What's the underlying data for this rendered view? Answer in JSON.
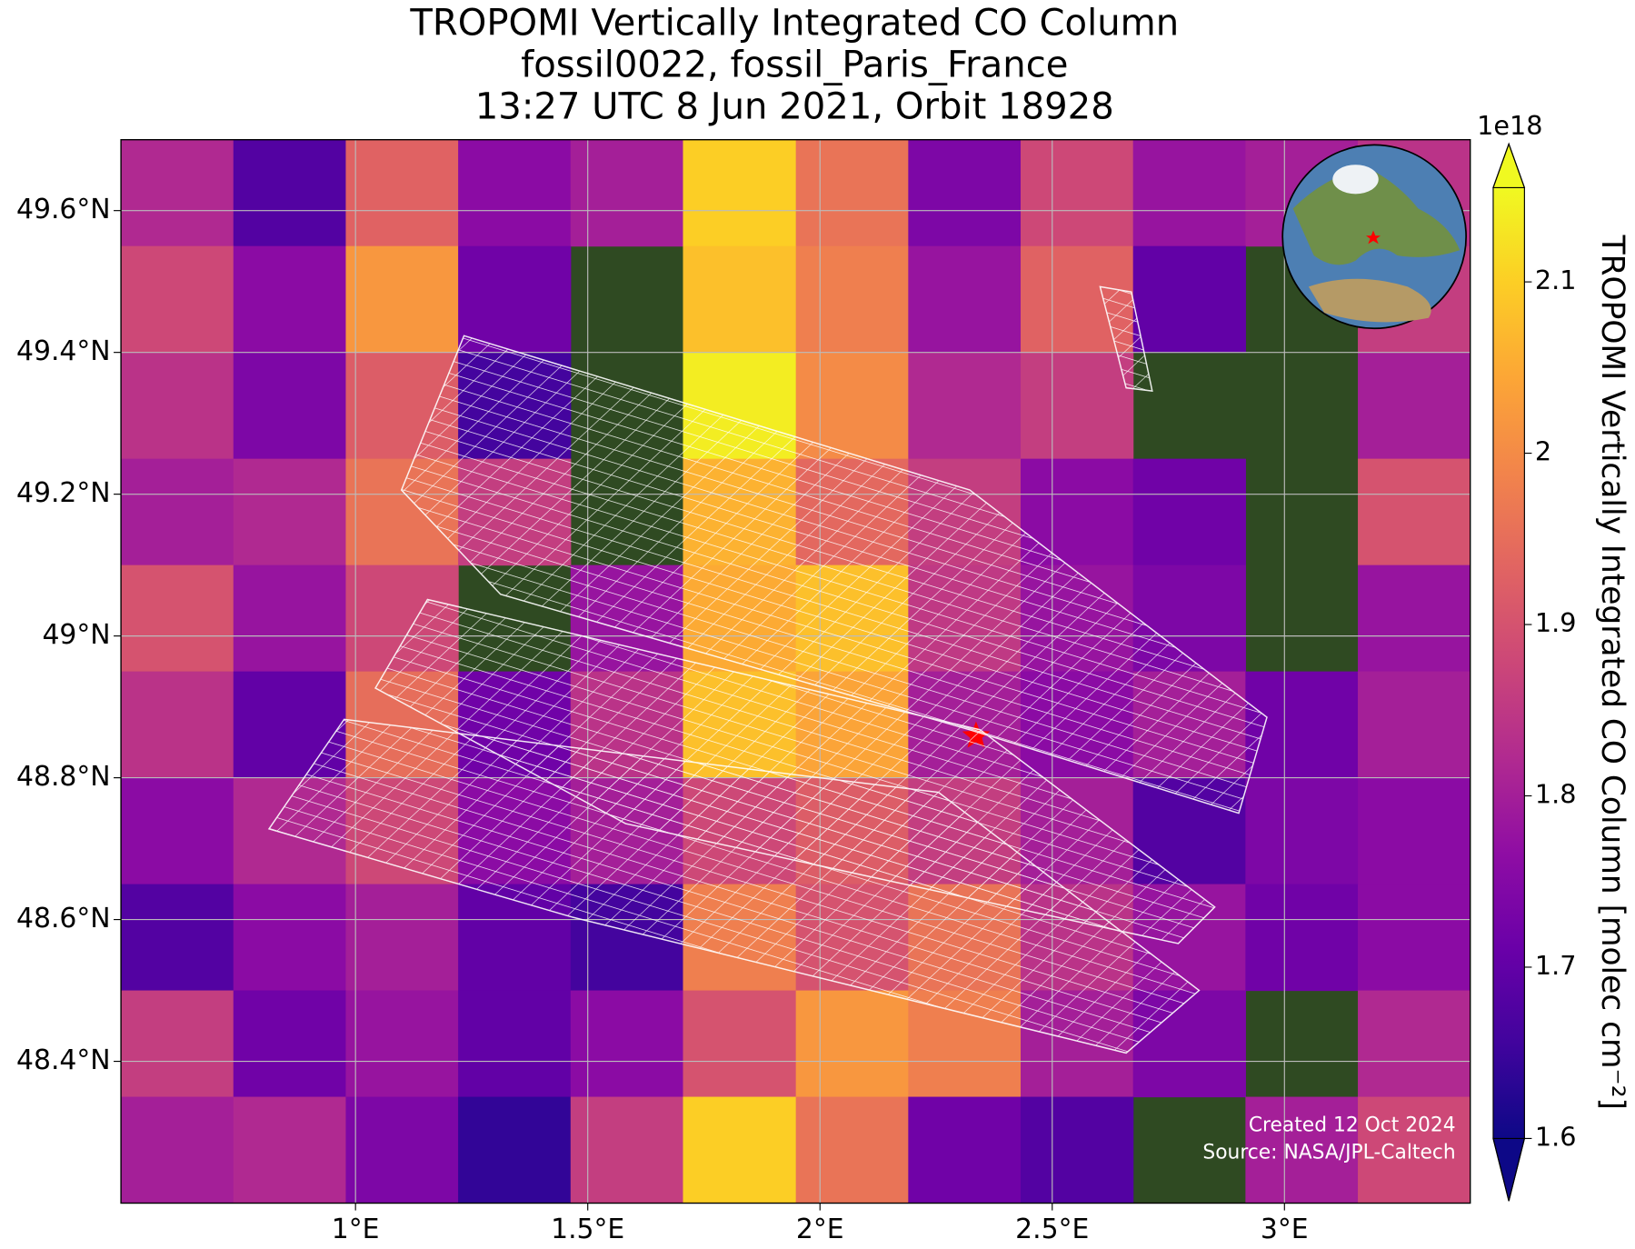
{
  "chart_data": {
    "type": "heatmap",
    "title": [
      "TROPOMI Vertically Integrated CO Column",
      "fossil0022, fossil_Paris_France",
      "13:27 UTC 8 Jun 2021, Orbit 18928"
    ],
    "colorbar_label": "TROPOMI Vertically Integrated CO Column [molec cm⁻²]",
    "colorbar_offset": "1e18",
    "clim": [
      1.6,
      2.155
    ],
    "cticks": [
      1.6,
      1.7,
      1.8,
      1.9,
      2.0,
      2.1
    ],
    "colormap": "plasma",
    "xlim": [
      0.495,
      3.4
    ],
    "ylim": [
      48.2,
      49.7
    ],
    "xticks": [
      {
        "value": 1,
        "label": "1°E"
      },
      {
        "value": 1.5,
        "label": "1.5°E"
      },
      {
        "value": 2,
        "label": "2°E"
      },
      {
        "value": 2.5,
        "label": "2.5°E"
      },
      {
        "value": 3,
        "label": "3°E"
      }
    ],
    "yticks": [
      {
        "value": 48.4,
        "label": "48.4°N"
      },
      {
        "value": 48.6,
        "label": "48.6°N"
      },
      {
        "value": 48.8,
        "label": "48.8°N"
      },
      {
        "value": 49,
        "label": "49°N"
      },
      {
        "value": 49.2,
        "label": "49.2°N"
      },
      {
        "value": 49.4,
        "label": "49.4°N"
      },
      {
        "value": 49.6,
        "label": "49.6°N"
      }
    ],
    "grid": true,
    "x_edges": [
      0.495,
      0.737,
      0.979,
      1.221,
      1.463,
      1.705,
      1.948,
      2.19,
      2.432,
      2.674,
      2.916,
      3.158,
      3.4
    ],
    "y_edges": [
      49.7,
      49.55,
      49.4,
      49.25,
      49.1,
      48.95,
      48.8,
      48.65,
      48.5,
      48.35,
      48.2
    ],
    "values": [
      [
        1.82,
        1.68,
        1.93,
        1.76,
        1.8,
        2.1,
        1.96,
        1.74,
        1.88,
        1.78,
        1.8,
        1.84
      ],
      [
        1.88,
        1.76,
        2.02,
        1.72,
        null,
        2.08,
        1.98,
        1.78,
        1.93,
        1.7,
        null,
        1.86
      ],
      [
        1.84,
        1.74,
        1.92,
        1.66,
        null,
        2.14,
        2.0,
        1.82,
        1.86,
        null,
        null,
        1.8
      ],
      [
        1.8,
        1.82,
        1.96,
        1.86,
        null,
        2.06,
        1.94,
        1.86,
        1.76,
        1.72,
        null,
        1.9
      ],
      [
        1.9,
        1.78,
        1.88,
        null,
        1.78,
        2.05,
        2.08,
        1.85,
        1.78,
        1.74,
        null,
        1.78
      ],
      [
        1.84,
        1.7,
        1.95,
        1.72,
        1.84,
        2.08,
        2.04,
        1.8,
        1.76,
        1.8,
        1.72,
        1.8
      ],
      [
        1.76,
        1.82,
        1.88,
        1.76,
        1.8,
        1.88,
        1.92,
        1.86,
        1.8,
        1.68,
        1.74,
        1.76
      ],
      [
        1.68,
        1.76,
        1.8,
        1.7,
        1.66,
        1.98,
        1.9,
        1.96,
        1.84,
        1.78,
        1.72,
        1.76
      ],
      [
        1.86,
        1.72,
        1.78,
        1.7,
        1.76,
        1.9,
        2.02,
        1.98,
        1.8,
        1.74,
        null,
        1.82
      ],
      [
        1.8,
        1.82,
        1.74,
        1.64,
        1.86,
        2.1,
        1.96,
        1.72,
        1.68,
        null,
        1.8,
        1.88
      ]
    ],
    "site": {
      "lon": 2.336,
      "lat": 48.859
    },
    "annotations": [
      "Created 12 Oct 2024",
      "Source: NASA/JPL-Caltech"
    ]
  }
}
